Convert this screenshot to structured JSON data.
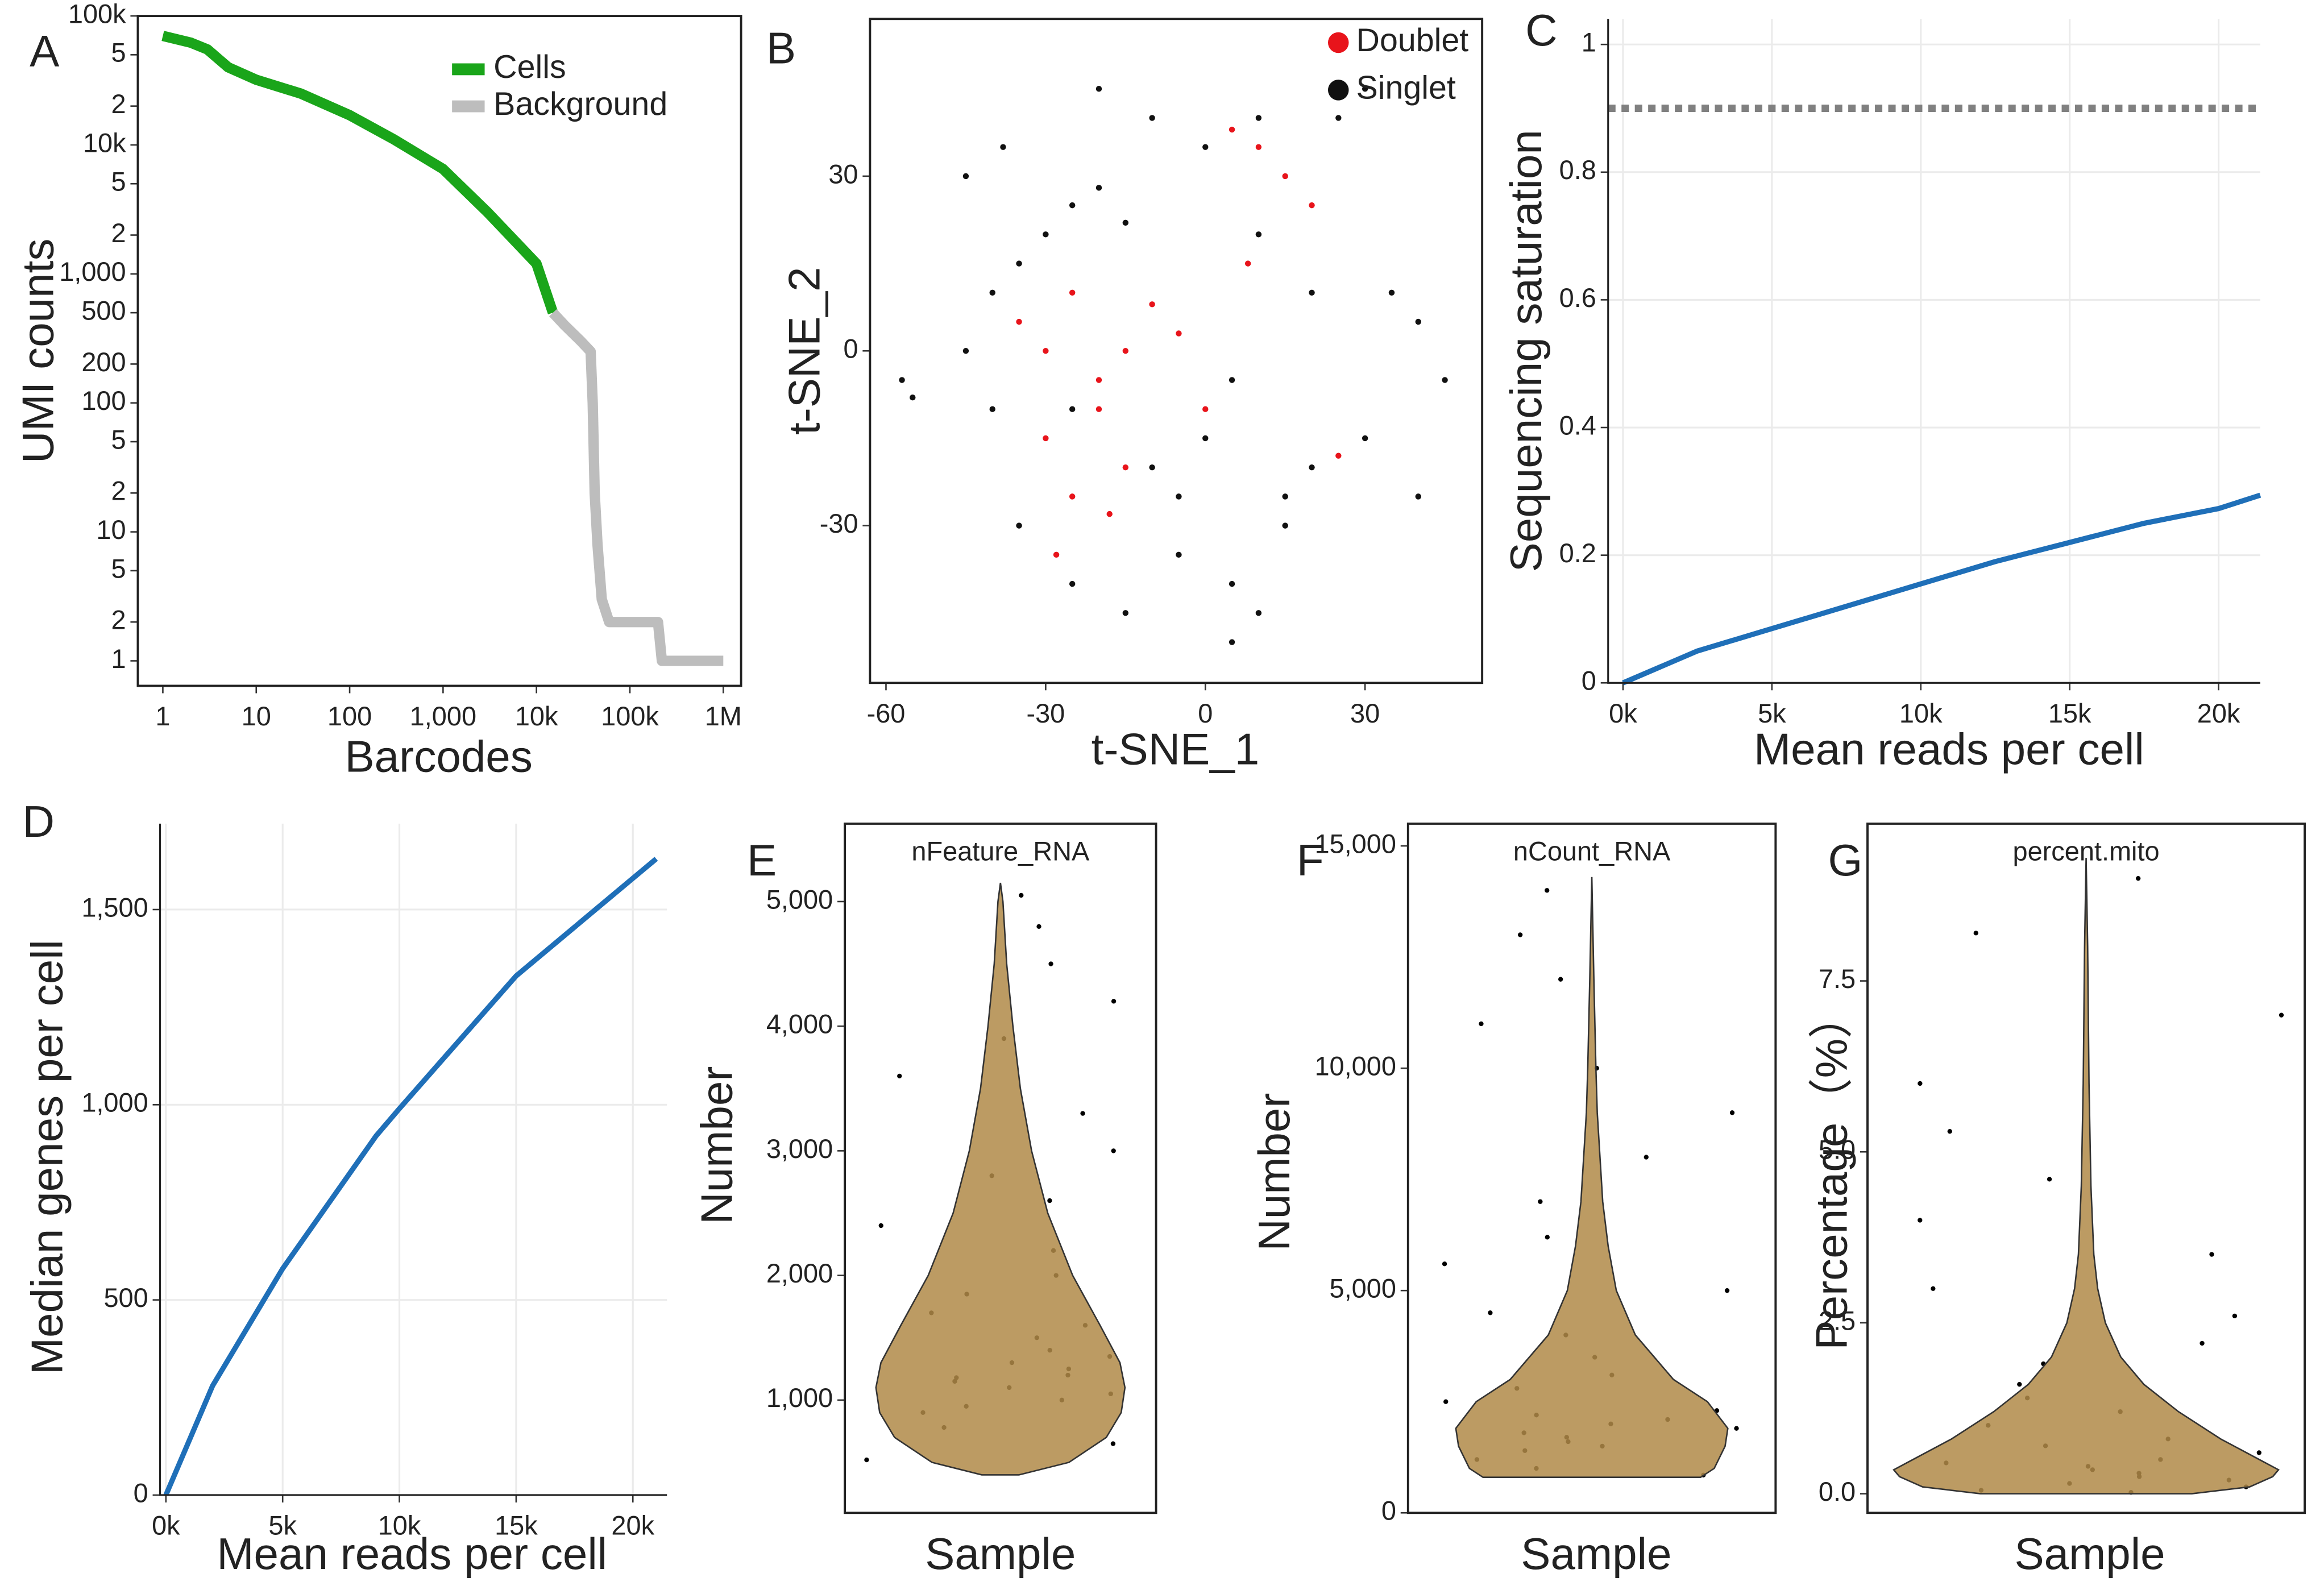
{
  "chart_data": [
    {
      "type": "line",
      "panel_label": "A",
      "xlabel": "Barcodes",
      "ylabel": "UMI counts",
      "xlog": true,
      "ylog": true,
      "legend": "top-right",
      "xlim": [
        0.54,
        1550000
      ],
      "ylim": [
        0.64,
        100000
      ],
      "xticks": [
        1,
        10,
        100,
        {
          "value": 1000,
          "label": "1,000"
        },
        {
          "value": 10000,
          "label": "10k"
        },
        {
          "value": 100000,
          "label": "100k"
        },
        {
          "value": 1000000,
          "label": "1M"
        }
      ],
      "yticks": [
        {
          "value": 100000,
          "label": "100k"
        },
        {
          "value": 50000,
          "label": "5"
        },
        {
          "value": 20000,
          "label": "2"
        },
        {
          "value": 10000,
          "label": "10k"
        },
        {
          "value": 5000,
          "label": "5"
        },
        {
          "value": 2000,
          "label": "2"
        },
        {
          "value": 1000,
          "label": "1,000"
        },
        500,
        200,
        100,
        {
          "value": 50,
          "label": "5"
        },
        {
          "value": 20,
          "label": "2"
        },
        10,
        5,
        2,
        1
      ],
      "series": [
        {
          "name": "Cells",
          "color": "#1aa51a",
          "x": [
            1,
            2,
            3,
            5,
            10,
            30,
            100,
            300,
            1000,
            3000,
            10000,
            15000
          ],
          "values": [
            70000,
            62000,
            55000,
            40000,
            32000,
            25000,
            17000,
            11000,
            6500,
            3000,
            1200,
            500
          ]
        },
        {
          "name": "Background",
          "color": "#bdbdbd",
          "x": [
            15000,
            20000,
            30000,
            38000,
            40000,
            42000,
            45000,
            50000,
            60000,
            100000,
            200000,
            220000,
            1000000
          ],
          "values": [
            500,
            400,
            300,
            250,
            100,
            20,
            8,
            3,
            2,
            2,
            2,
            1,
            1
          ]
        }
      ]
    },
    {
      "type": "scatter",
      "panel_label": "B",
      "xlabel": "t-SNE_1",
      "ylabel": "t-SNE_2",
      "legend": "top-right",
      "xlim": [
        -63,
        52
      ],
      "ylim": [
        -57,
        57
      ],
      "xticks": [
        -60,
        -30,
        0,
        30
      ],
      "yticks": [
        -30,
        0,
        30
      ],
      "series": [
        {
          "name": "Doublet",
          "color": "#e8141b",
          "x": [
            -35,
            -30,
            -25,
            -20,
            -15,
            -10,
            -5,
            -30,
            -25,
            -20,
            -15,
            5,
            10,
            15,
            20,
            25,
            -28,
            -18,
            0,
            8
          ],
          "values": [
            5,
            0,
            10,
            -5,
            0,
            8,
            3,
            -15,
            -25,
            -10,
            -20,
            38,
            35,
            30,
            25,
            -18,
            -35,
            -28,
            -10,
            15
          ]
        },
        {
          "name": "Singlet",
          "color": "#111111",
          "x": [
            -40,
            -35,
            -30,
            -25,
            -20,
            -15,
            -45,
            -40,
            -10,
            -5,
            0,
            5,
            -35,
            -25,
            -15,
            -5,
            5,
            15,
            20,
            10,
            -20,
            -10,
            0,
            10,
            25,
            30,
            35,
            40,
            45,
            30,
            40,
            -45,
            -38,
            -25,
            10,
            20,
            -57,
            -55,
            5,
            15
          ],
          "values": [
            10,
            15,
            20,
            25,
            28,
            22,
            0,
            -10,
            -20,
            -25,
            -15,
            -5,
            -30,
            -40,
            -45,
            -35,
            -40,
            -30,
            -20,
            -45,
            45,
            40,
            35,
            40,
            40,
            45,
            10,
            5,
            -5,
            -15,
            -25,
            30,
            35,
            -10,
            20,
            10,
            -5,
            -8,
            -50,
            -25
          ]
        }
      ]
    },
    {
      "type": "line",
      "panel_label": "C",
      "xlabel": "Mean reads per cell",
      "ylabel": "Sequencing saturation",
      "grid": true,
      "xlim": [
        -500,
        21400
      ],
      "ylim": [
        0,
        1.04
      ],
      "xticks": [
        {
          "value": 0,
          "label": "0k"
        },
        {
          "value": 5000,
          "label": "5k"
        },
        {
          "value": 10000,
          "label": "10k"
        },
        {
          "value": 15000,
          "label": "15k"
        },
        {
          "value": 20000,
          "label": "20k"
        }
      ],
      "yticks": [
        0,
        0.2,
        0.4,
        0.6,
        0.8,
        1
      ],
      "hline": 0.9,
      "series": [
        {
          "color": "#1f6fb8",
          "x": [
            0,
            2500,
            5000,
            7500,
            10000,
            12500,
            15000,
            17500,
            20000,
            21400
          ],
          "values": [
            0,
            0.05,
            0.085,
            0.12,
            0.155,
            0.19,
            0.22,
            0.25,
            0.273,
            0.294
          ]
        }
      ]
    },
    {
      "type": "line",
      "panel_label": "D",
      "xlabel": "Mean reads per cell",
      "ylabel": "Median genes per cell",
      "grid": true,
      "xlim": [
        -250,
        21460
      ],
      "ylim": [
        0,
        1720
      ],
      "xticks": [
        {
          "value": 0,
          "label": "0k"
        },
        {
          "value": 5000,
          "label": "5k"
        },
        {
          "value": 10000,
          "label": "10k"
        },
        {
          "value": 15000,
          "label": "15k"
        },
        {
          "value": 20000,
          "label": "20k"
        }
      ],
      "yticks": [
        0,
        500,
        {
          "value": 1000,
          "label": "1,000"
        },
        {
          "value": 1500,
          "label": "1,500"
        }
      ],
      "series": [
        {
          "color": "#1f6fb8",
          "x": [
            0,
            2000,
            5000,
            9000,
            10000,
            15000,
            20000,
            21000
          ],
          "values": [
            0,
            280,
            580,
            920,
            990,
            1330,
            1580,
            1630
          ]
        }
      ]
    },
    {
      "type": "violin",
      "panel_label": "E",
      "title": "nFeature_RNA",
      "category": "Sample",
      "ylabel": "Number",
      "color": "#b08a48",
      "ylim": [
        95,
        5625
      ],
      "yticks": [
        {
          "value": 1000,
          "label": "1,000"
        },
        {
          "value": 2000,
          "label": "2,000"
        },
        {
          "value": 3000,
          "label": "3,000"
        },
        {
          "value": 4000,
          "label": "4,000"
        },
        {
          "value": 5000,
          "label": "5,000"
        }
      ],
      "violin": {
        "y": [
          400,
          500,
          700,
          900,
          1100,
          1300,
          1600,
          2000,
          2500,
          3000,
          3500,
          4000,
          4500,
          5000,
          5150
        ],
        "density": [
          0.15,
          0.55,
          0.85,
          0.97,
          1,
          0.96,
          0.8,
          0.58,
          0.38,
          0.25,
          0.16,
          0.1,
          0.05,
          0.02,
          0
        ]
      },
      "points": [
        520,
        650,
        780,
        900,
        1000,
        1100,
        1150,
        1200,
        1250,
        1300,
        1400,
        1500,
        1600,
        1700,
        1850,
        2000,
        2200,
        2400,
        2600,
        2800,
        3000,
        3300,
        3600,
        3900,
        4200,
        4500,
        4800,
        5050,
        1050,
        1350,
        950,
        1180
      ]
    },
    {
      "type": "violin",
      "panel_label": "F",
      "title": "nCount_RNA",
      "category": "Sample",
      "ylabel": "Number",
      "color": "#b08a48",
      "ylim": [
        0,
        15500
      ],
      "yticks": [
        0,
        {
          "value": 5000,
          "label": "5,000"
        },
        {
          "value": 10000,
          "label": "10,000"
        },
        {
          "value": 15000,
          "label": "15,000"
        }
      ],
      "violin": {
        "y": [
          800,
          1000,
          1500,
          1900,
          2500,
          3000,
          4000,
          5000,
          6000,
          7000,
          8000,
          9000,
          10000,
          12000,
          14300
        ],
        "density": [
          0.8,
          0.9,
          0.98,
          1,
          0.85,
          0.6,
          0.32,
          0.18,
          0.12,
          0.08,
          0.06,
          0.04,
          0.03,
          0.015,
          0
        ]
      },
      "points": [
        850,
        1000,
        1200,
        1400,
        1600,
        1800,
        1900,
        2000,
        2100,
        2300,
        2500,
        2800,
        3100,
        3500,
        4000,
        4500,
        5000,
        5600,
        6200,
        7000,
        8000,
        9000,
        10000,
        11000,
        12000,
        13000,
        14000,
        1700,
        2200,
        1500
      ]
    },
    {
      "type": "violin",
      "panel_label": "G",
      "title": "percent.mito",
      "category": "Sample",
      "ylabel": "Percentage（%）",
      "color": "#b08a48",
      "ylim": [
        -0.28,
        9.8
      ],
      "yticks": [
        {
          "value": 0,
          "label": "0.0"
        },
        2.5,
        {
          "value": 5,
          "label": "5.0"
        },
        7.5
      ],
      "violin": {
        "y": [
          0,
          0.1,
          0.25,
          0.35,
          0.5,
          0.8,
          1.2,
          1.6,
          2,
          2.5,
          3,
          3.5,
          4.5,
          6,
          8,
          9.3
        ],
        "density": [
          0.55,
          0.85,
          0.97,
          1,
          0.9,
          0.7,
          0.48,
          0.3,
          0.18,
          0.1,
          0.06,
          0.04,
          0.025,
          0.015,
          0.008,
          0
        ]
      },
      "points": [
        0.02,
        0.05,
        0.1,
        0.15,
        0.2,
        0.25,
        0.3,
        0.35,
        0.4,
        0.5,
        0.6,
        0.7,
        0.8,
        1.0,
        1.2,
        1.4,
        1.6,
        1.9,
        2.2,
        2.6,
        3.0,
        3.5,
        4.0,
        4.6,
        5.3,
        6.0,
        7.0,
        8.2,
        9.0,
        0.45
      ]
    }
  ]
}
